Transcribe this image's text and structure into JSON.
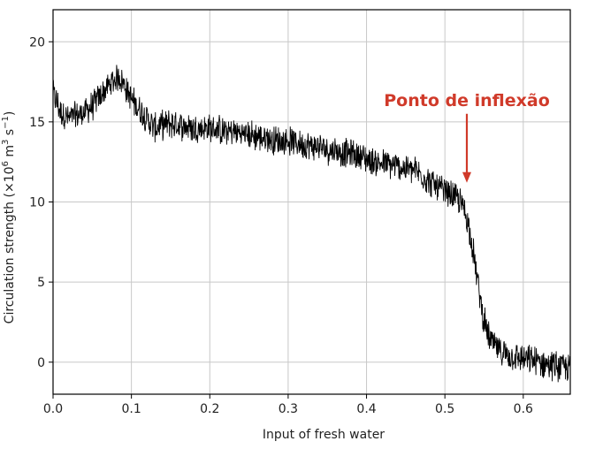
{
  "chart_data": {
    "type": "line",
    "title": "",
    "xlabel": "Input of fresh water",
    "ylabel_main": "Circulation strength (×10",
    "ylabel_exp1": "6",
    "ylabel_mid": " m",
    "ylabel_exp2": "3",
    "ylabel_mid2": " s",
    "ylabel_exp3": "−1",
    "ylabel_end": ")",
    "xlim": [
      0.0,
      0.66
    ],
    "ylim": [
      -2,
      22
    ],
    "xticks": [
      0.0,
      0.1,
      0.2,
      0.3,
      0.4,
      0.5,
      0.6
    ],
    "xtick_labels": [
      "0.0",
      "0.1",
      "0.2",
      "0.3",
      "0.4",
      "0.5",
      "0.6"
    ],
    "yticks": [
      0,
      5,
      10,
      15,
      20
    ],
    "ytick_labels": [
      "0",
      "5",
      "10",
      "15",
      "20"
    ],
    "grid": true,
    "line_color": "#000000",
    "series": [
      {
        "x": [
          0.0,
          0.01,
          0.02,
          0.03,
          0.04,
          0.05,
          0.06,
          0.07,
          0.08,
          0.085,
          0.09,
          0.1,
          0.11,
          0.12,
          0.13,
          0.14,
          0.15,
          0.16,
          0.17,
          0.18,
          0.19,
          0.2,
          0.21,
          0.22,
          0.23,
          0.24,
          0.25,
          0.26,
          0.27,
          0.28,
          0.29,
          0.3,
          0.31,
          0.32,
          0.33,
          0.34,
          0.35,
          0.36,
          0.37,
          0.38,
          0.39,
          0.4,
          0.41,
          0.42,
          0.43,
          0.44,
          0.45,
          0.46,
          0.47,
          0.48,
          0.49,
          0.5,
          0.51,
          0.52,
          0.525,
          0.53,
          0.535,
          0.54,
          0.545,
          0.55,
          0.555,
          0.56,
          0.57,
          0.58,
          0.59,
          0.6,
          0.61,
          0.62,
          0.63,
          0.64,
          0.65,
          0.66
        ],
        "y": [
          16.8,
          15.6,
          15.2,
          15.4,
          15.6,
          16.0,
          16.6,
          17.2,
          17.7,
          17.8,
          17.4,
          16.4,
          15.8,
          15.2,
          14.6,
          14.8,
          14.9,
          14.8,
          14.7,
          14.6,
          14.6,
          14.6,
          14.5,
          14.4,
          14.4,
          14.3,
          14.2,
          14.1,
          14.0,
          13.9,
          13.8,
          13.8,
          13.7,
          13.6,
          13.5,
          13.4,
          13.3,
          13.2,
          13.1,
          13.0,
          12.9,
          12.7,
          12.5,
          12.4,
          12.3,
          12.2,
          12.1,
          12.0,
          11.7,
          11.3,
          10.9,
          10.6,
          10.4,
          10.0,
          9.5,
          8.6,
          7.3,
          5.6,
          4.0,
          2.6,
          1.7,
          1.2,
          0.7,
          0.5,
          0.3,
          0.2,
          0.1,
          0.0,
          -0.1,
          -0.2,
          -0.3,
          -0.4
        ]
      }
    ],
    "annotation": {
      "text": "Ponto de inflexão",
      "color": "#d03a2a",
      "point": [
        0.528,
        11.2
      ]
    }
  }
}
